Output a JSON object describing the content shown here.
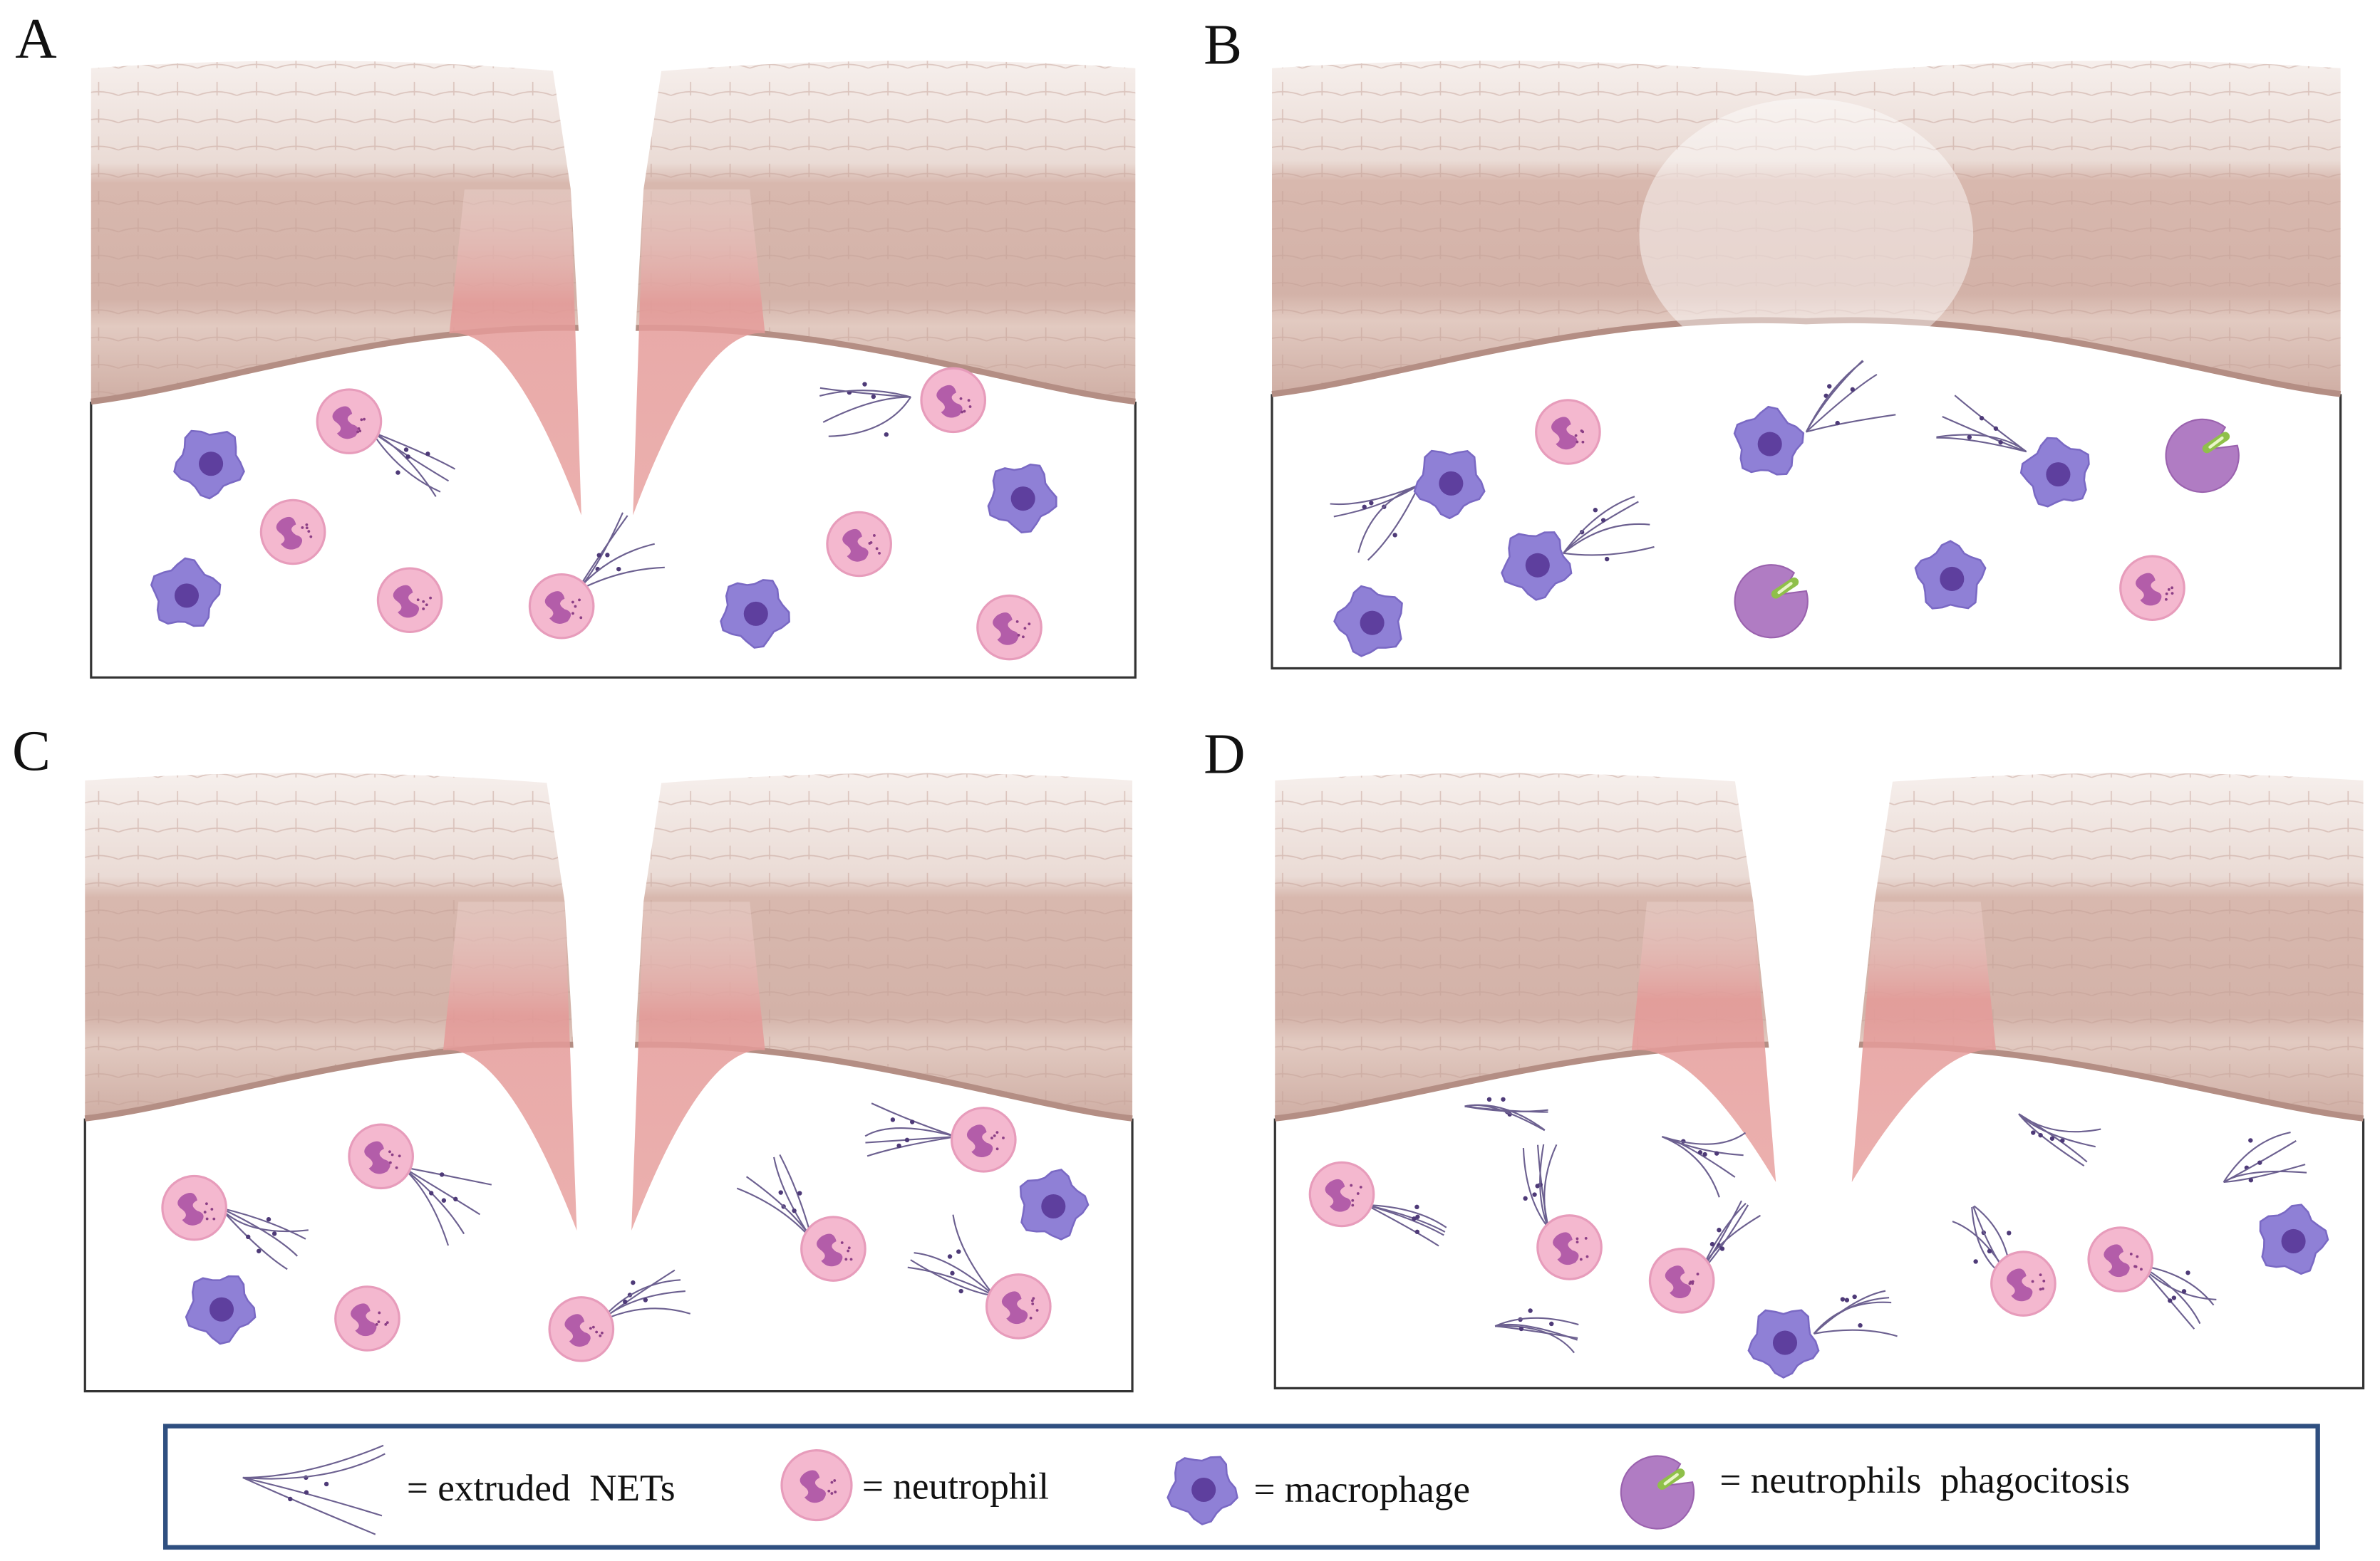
{
  "panels": [
    {
      "label": "A"
    },
    {
      "label": "B"
    },
    {
      "label": "C"
    },
    {
      "label": "D"
    }
  ],
  "legend": [
    {
      "label": "= extruded  NETs"
    },
    {
      "label": "= neutrophil"
    },
    {
      "label": "= macrophage"
    },
    {
      "label": "= neutrophils  phagocitosis"
    }
  ]
}
